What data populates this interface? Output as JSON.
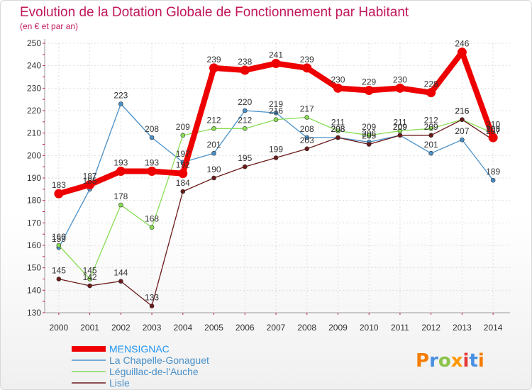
{
  "chart_data": {
    "type": "line",
    "title": "Evolution de la Dotation Globale de Fonctionnement par Habitant",
    "subtitle": "(en € et par an)",
    "xlabel": "",
    "ylabel": "",
    "x": [
      "2000",
      "2001",
      "2002",
      "2003",
      "2004",
      "2005",
      "2006",
      "2007",
      "2008",
      "2009",
      "2010",
      "2011",
      "2012",
      "2013",
      "2014"
    ],
    "ylim": [
      130,
      250
    ],
    "yticks": [
      130,
      140,
      150,
      160,
      170,
      180,
      190,
      200,
      210,
      220,
      230,
      240,
      250
    ],
    "grid": true,
    "legend": "bottom-left",
    "series": [
      {
        "name": "MENSIGNAC",
        "color": "#ee0000",
        "values": [
          183,
          187,
          193,
          193,
          192,
          239,
          238,
          241,
          239,
          230,
          229,
          230,
          228,
          246,
          208
        ],
        "labels": [
          "183",
          "187",
          "193",
          "193",
          "192",
          "239",
          "238",
          "241",
          "239",
          "230",
          "229",
          "230",
          "228",
          "246",
          "208"
        ]
      },
      {
        "name": "La Chapelle-Gonaguet",
        "color": "#4a90c8",
        "values": [
          159,
          185,
          223,
          208,
          197,
          201,
          220,
          219,
          208,
          208,
          206,
          209,
          201,
          207,
          189
        ],
        "labels": [
          "159",
          "185",
          "223",
          "208",
          "197",
          "201",
          "220",
          "219",
          "208",
          "208",
          "206",
          "209",
          "201",
          "207",
          "189"
        ]
      },
      {
        "name": "Léguillac-de-l'Auche",
        "color": "#88dd55",
        "values": [
          160,
          145,
          178,
          168,
          209,
          212,
          212,
          216,
          217,
          211,
          209,
          211,
          212,
          216,
          210
        ],
        "labels": [
          "160",
          "145",
          "178",
          "168",
          "209",
          "212",
          "212",
          "216",
          "217",
          "211",
          "209",
          "211",
          "212",
          "216",
          "210"
        ]
      },
      {
        "name": "Lisle",
        "color": "#6b1a1a",
        "values": [
          145,
          142,
          144,
          133,
          184,
          190,
          195,
          199,
          203,
          208,
          205,
          209,
          209,
          216,
          207
        ],
        "labels": [
          "145",
          "142",
          "144",
          "133",
          "184",
          "190",
          "195",
          "199",
          "203",
          "208",
          "205",
          "209",
          "209",
          "216",
          "207"
        ]
      }
    ]
  },
  "branding": {
    "logo_text": "Proxiti"
  }
}
